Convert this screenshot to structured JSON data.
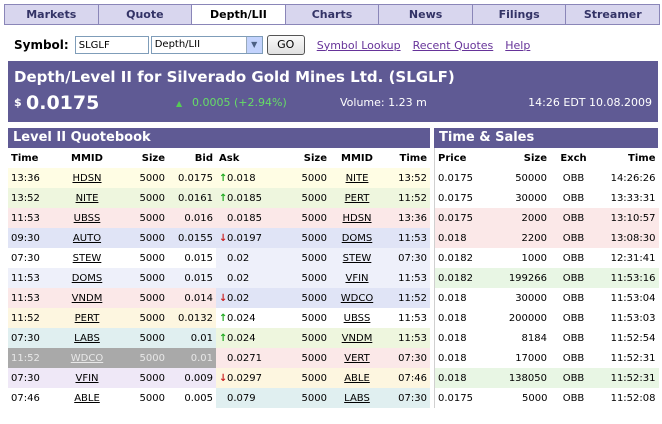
{
  "tabs": [
    "Markets",
    "Quote",
    "Depth/LII",
    "Charts",
    "News",
    "Filings",
    "Streamer"
  ],
  "active_tab": 2,
  "symbol_bar": {
    "label": "Symbol:",
    "symbol_value": "SLGLF",
    "view_value": "Depth/LII",
    "go_label": "GO",
    "links": [
      "Symbol Lookup",
      "Recent Quotes",
      "Help"
    ]
  },
  "header": {
    "title": "Depth/Level II for Silverado Gold Mines Ltd.  (SLGLF)",
    "currency": "$",
    "price": "0.0175",
    "change": "0.0005 (+2.94%)",
    "volume": "Volume: 1.23 m",
    "datetime": "14:26 EDT 10.08.2009"
  },
  "quotebook": {
    "title": "Level II Quotebook",
    "columns": [
      "Time",
      "MMID",
      "Size",
      "Bid",
      "Ask",
      "Size",
      "MMID",
      "Time"
    ],
    "rows": [
      {
        "bid": {
          "time": "13:36",
          "mmid": "HDSN",
          "size": "5000",
          "price": "0.0175",
          "arrow": "up"
        },
        "ask": {
          "price": "0.018",
          "arrow": "",
          "size": "5000",
          "mmid": "NITE",
          "time": "13:52"
        }
      },
      {
        "bid": {
          "time": "13:52",
          "mmid": "NITE",
          "size": "5000",
          "price": "0.0161",
          "arrow": "up"
        },
        "ask": {
          "price": "0.0185",
          "arrow": "up",
          "size": "5000",
          "mmid": "PERT",
          "time": "11:52"
        }
      },
      {
        "bid": {
          "time": "11:53",
          "mmid": "UBSS",
          "size": "5000",
          "price": "0.016",
          "arrow": ""
        },
        "ask": {
          "price": "0.0185",
          "arrow": "",
          "size": "5000",
          "mmid": "HDSN",
          "time": "13:36"
        }
      },
      {
        "bid": {
          "time": "09:30",
          "mmid": "AUTO",
          "size": "5000",
          "price": "0.0155",
          "arrow": "down"
        },
        "ask": {
          "price": "0.0197",
          "arrow": "down",
          "size": "5000",
          "mmid": "DOMS",
          "time": "11:53"
        }
      },
      {
        "bid": {
          "time": "07:30",
          "mmid": "STEW",
          "size": "5000",
          "price": "0.015",
          "arrow": ""
        },
        "ask": {
          "price": "0.02",
          "arrow": "",
          "size": "5000",
          "mmid": "STEW",
          "time": "07:30"
        }
      },
      {
        "bid": {
          "time": "11:53",
          "mmid": "DOMS",
          "size": "5000",
          "price": "0.015",
          "arrow": ""
        },
        "ask": {
          "price": "0.02",
          "arrow": "",
          "size": "5000",
          "mmid": "VFIN",
          "time": "11:53"
        }
      },
      {
        "bid": {
          "time": "11:53",
          "mmid": "VNDM",
          "size": "5000",
          "price": "0.014",
          "arrow": "down"
        },
        "ask": {
          "price": "0.02",
          "arrow": "down",
          "size": "5000",
          "mmid": "WDCO",
          "time": "11:52"
        }
      },
      {
        "bid": {
          "time": "11:52",
          "mmid": "PERT",
          "size": "5000",
          "price": "0.0132",
          "arrow": ""
        },
        "ask": {
          "price": "0.024",
          "arrow": "up",
          "size": "5000",
          "mmid": "UBSS",
          "time": "11:53"
        }
      },
      {
        "bid": {
          "time": "07:30",
          "mmid": "LABS",
          "size": "5000",
          "price": "0.01",
          "arrow": ""
        },
        "ask": {
          "price": "0.024",
          "arrow": "up",
          "size": "5000",
          "mmid": "VNDM",
          "time": "11:53"
        }
      },
      {
        "bid": {
          "time": "11:52",
          "mmid": "WDCO",
          "size": "5000",
          "price": "0.01",
          "arrow": ""
        },
        "ask": {
          "price": "0.0271",
          "arrow": "",
          "size": "5000",
          "mmid": "VERT",
          "time": "07:30"
        }
      },
      {
        "bid": {
          "time": "07:30",
          "mmid": "VFIN",
          "size": "5000",
          "price": "0.009",
          "arrow": ""
        },
        "ask": {
          "price": "0.0297",
          "arrow": "down",
          "size": "5000",
          "mmid": "ABLE",
          "time": "07:46"
        }
      },
      {
        "bid": {
          "time": "07:46",
          "mmid": "ABLE",
          "size": "5000",
          "price": "0.005",
          "arrow": ""
        },
        "ask": {
          "price": "0.079",
          "arrow": "",
          "size": "5000",
          "mmid": "LABS",
          "time": "07:30"
        }
      }
    ],
    "bid_colors": [
      "#fffde4",
      "#eef6de",
      "#fbe8e8",
      "#e0e4f6",
      "#ffffff",
      "#eef0fa",
      "#fbe8e8",
      "#fdf6e0",
      "#e0eff0",
      "#a9a9a9",
      "#efe8f7",
      "#ffffff"
    ],
    "ask_colors": [
      "#fffde4",
      "#eef6de",
      "#fbe8e8",
      "#e0e4f6",
      "#eef0fa",
      "#eef0fa",
      "#e0e4f6",
      "#ffffff",
      "#eef6de",
      "#fbe8e8",
      "#fdf6e0",
      "#e0eff0"
    ]
  },
  "time_sales": {
    "title": "Time & Sales",
    "columns": [
      "Price",
      "Size",
      "Exch",
      "Time"
    ],
    "rows": [
      {
        "price": "0.0175",
        "size": "50000",
        "exch": "OBB",
        "time": "14:26:26"
      },
      {
        "price": "0.0175",
        "size": "30000",
        "exch": "OBB",
        "time": "13:33:31"
      },
      {
        "price": "0.0175",
        "size": "2000",
        "exch": "OBB",
        "time": "13:10:57"
      },
      {
        "price": "0.018",
        "size": "2200",
        "exch": "OBB",
        "time": "13:08:30"
      },
      {
        "price": "0.0182",
        "size": "1000",
        "exch": "OBB",
        "time": "12:31:41"
      },
      {
        "price": "0.0182",
        "size": "199266",
        "exch": "OBB",
        "time": "11:53:16"
      },
      {
        "price": "0.018",
        "size": "30000",
        "exch": "OBB",
        "time": "11:53:04"
      },
      {
        "price": "0.018",
        "size": "200000",
        "exch": "OBB",
        "time": "11:53:03"
      },
      {
        "price": "0.018",
        "size": "8184",
        "exch": "OBB",
        "time": "11:52:54"
      },
      {
        "price": "0.018",
        "size": "17000",
        "exch": "OBB",
        "time": "11:52:31"
      },
      {
        "price": "0.018",
        "size": "138050",
        "exch": "OBB",
        "time": "11:52:31"
      },
      {
        "price": "0.0175",
        "size": "5000",
        "exch": "OBB",
        "time": "11:52:08"
      }
    ],
    "row_colors": [
      "#ffffff",
      "#ffffff",
      "#fbe8e8",
      "#fbe8e8",
      "#ffffff",
      "#e8f6e4",
      "#ffffff",
      "#ffffff",
      "#ffffff",
      "#ffffff",
      "#e8f6e4",
      "#ffffff"
    ]
  },
  "colors": {
    "header_bg": "#5f5a94",
    "up": "#22aa22",
    "down": "#cc2222",
    "link": "#663399"
  },
  "icons": {
    "up_arrow": "arrow-up-icon",
    "down_arrow": "arrow-down-icon",
    "dropdown": "chevron-down-icon"
  }
}
